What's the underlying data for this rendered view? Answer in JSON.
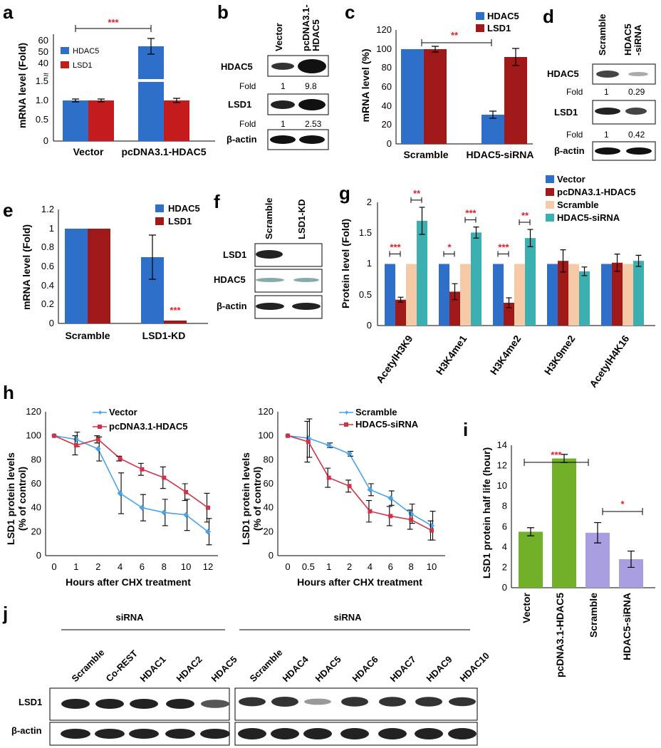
{
  "panels": {
    "a": "a",
    "b": "b",
    "c": "c",
    "d": "d",
    "e": "e",
    "f": "f",
    "g": "g",
    "h": "h",
    "i": "i",
    "j": "j"
  },
  "colors": {
    "blue": "#2e6fc9",
    "red": "#c41c1c",
    "darkred": "#a11818",
    "peach": "#f6caa6",
    "teal": "#3cb0b0",
    "green": "#72b02a",
    "lavender": "#a99ee0",
    "line_blue": "#4aa3e8",
    "line_red": "#d23248"
  },
  "chart_data": [
    {
      "id": "a",
      "type": "bar",
      "categories": [
        "Vector",
        "pcDNA3.1-HDAC5"
      ],
      "series": [
        {
          "name": "HDAC5",
          "values": [
            1.0,
            54
          ],
          "errors": [
            0.04,
            7
          ]
        },
        {
          "name": "LSD1",
          "values": [
            1.0,
            1.0
          ],
          "errors": [
            0.04,
            0.06
          ]
        }
      ],
      "ylabel": "mRNA level (Fold)",
      "yticks_low": [
        "0",
        "0.5",
        "1.0",
        "1.5"
      ],
      "yticks_high": [
        "40",
        "50",
        "60"
      ],
      "significance": "***"
    },
    {
      "id": "c",
      "type": "bar",
      "categories": [
        "Scramble",
        "HDAC5-siRNA"
      ],
      "series": [
        {
          "name": "HDAC5",
          "values": [
            100,
            31
          ],
          "errors": [
            0.5,
            4
          ]
        },
        {
          "name": "LSD1",
          "values": [
            100,
            92
          ],
          "errors": [
            3,
            9
          ]
        }
      ],
      "ylabel": "mRNA level (%)",
      "ylim": [
        0,
        120
      ],
      "yticks": [
        "0",
        "20",
        "40",
        "60",
        "80",
        "100",
        "120"
      ],
      "significance": "**"
    },
    {
      "id": "e",
      "type": "bar",
      "categories": [
        "Scramble",
        "LSD1-KD"
      ],
      "series": [
        {
          "name": "HDAC5",
          "values": [
            1,
            0.75
          ],
          "errors": [
            0,
            0.26
          ]
        },
        {
          "name": "LSD1",
          "values": [
            1,
            0.03
          ],
          "errors": [
            0,
            0
          ]
        }
      ],
      "ylabel": "mRNA level (Fold)",
      "ylim": [
        0,
        1.2
      ],
      "yticks": [
        "0",
        "0.2",
        "0.4",
        "0.6",
        "0.8",
        "1",
        "1.2"
      ],
      "significance": "***"
    },
    {
      "id": "g",
      "type": "bar",
      "categories": [
        "AcetylH3K9",
        "H3K4me1",
        "H3K4me2",
        "H3K9me2",
        "AcetylH4K16"
      ],
      "series": [
        {
          "name": "Vector",
          "values": [
            1,
            1,
            1,
            1,
            1
          ],
          "errors": [
            0,
            0,
            0,
            0,
            0
          ]
        },
        {
          "name": "pcDNA3.1-HDAC5",
          "values": [
            0.42,
            0.55,
            0.37,
            1.05,
            1.02
          ],
          "errors": [
            0.04,
            0.13,
            0.08,
            0.18,
            0.14
          ]
        },
        {
          "name": "Scramble",
          "values": [
            1,
            1,
            1,
            1,
            1
          ],
          "errors": [
            0,
            0,
            0,
            0,
            0
          ]
        },
        {
          "name": "HDAC5-siRNA",
          "values": [
            1.7,
            1.51,
            1.42,
            0.88,
            1.05
          ],
          "errors": [
            0.22,
            0.09,
            0.14,
            0.07,
            0.09
          ]
        }
      ],
      "ylabel": "Protein level (Fold)",
      "ylim": [
        0,
        2
      ],
      "yticks": [
        "0",
        "0.5",
        "1",
        "1.5",
        "2"
      ],
      "significance": [
        [
          "***",
          "**"
        ],
        [
          "*",
          "***"
        ],
        [
          "***",
          "**"
        ]
      ]
    },
    {
      "id": "h1",
      "type": "line",
      "x": [
        0,
        1,
        2,
        4,
        6,
        8,
        10,
        12
      ],
      "series": [
        {
          "name": "Vector",
          "values": [
            100,
            97,
            89,
            52,
            40,
            36,
            34,
            20
          ],
          "errors": [
            1,
            6,
            10,
            17,
            11,
            11,
            13,
            11
          ]
        },
        {
          "name": "pcDNA3.1-HDAC5",
          "values": [
            100,
            92,
            97,
            81,
            72,
            65,
            53,
            40
          ],
          "errors": [
            1,
            8,
            3,
            2,
            5,
            9,
            7,
            12
          ]
        }
      ],
      "xlabel": "Hours after CHX treatment",
      "ylabel": [
        "LSD1 protein levels",
        "(% of control)"
      ],
      "ylim": [
        0,
        120
      ],
      "xticks": [
        "0",
        "1",
        "2",
        "4",
        "6",
        "8",
        "10",
        "12"
      ],
      "yticks": [
        "0",
        "20",
        "40",
        "60",
        "80",
        "100",
        "120"
      ]
    },
    {
      "id": "h2",
      "type": "line",
      "x": [
        0,
        0.5,
        1,
        2,
        4,
        6,
        8,
        10
      ],
      "series": [
        {
          "name": "Scramble",
          "values": [
            100,
            98,
            92,
            85,
            55,
            48,
            35,
            25
          ],
          "errors": [
            1,
            16,
            2,
            2,
            5,
            6,
            8,
            12
          ]
        },
        {
          "name": "HDAC5-siRNA",
          "values": [
            100,
            95,
            65,
            58,
            37,
            33,
            30,
            21
          ],
          "errors": [
            1,
            17,
            8,
            5,
            9,
            8,
            8,
            8
          ]
        }
      ],
      "xlabel": "Hours after CHX treatment",
      "ylabel": [
        "LSD1 protein levels",
        "(% of control)"
      ],
      "ylim": [
        0,
        120
      ],
      "xticks": [
        "0",
        "0.5",
        "1",
        "2",
        "4",
        "6",
        "8",
        "10"
      ],
      "yticks": [
        "0",
        "20",
        "40",
        "60",
        "80",
        "100",
        "120"
      ]
    },
    {
      "id": "i",
      "type": "bar",
      "categories": [
        "Vector",
        "pcDNA3.1-HDAC5",
        "Scramble",
        "HDAC5-siRNA"
      ],
      "values": [
        5.5,
        12.7,
        5.4,
        2.8
      ],
      "errors": [
        0.4,
        0.4,
        1.0,
        0.8
      ],
      "ylabel": "LSD1 protein half life (hour)",
      "ylim": [
        0,
        14
      ],
      "yticks": [
        "0",
        "2",
        "4",
        "6",
        "8",
        "10",
        "12",
        "14"
      ],
      "significance": [
        "***",
        "*"
      ]
    }
  ],
  "blots": {
    "b": {
      "lanes": [
        "Vector",
        "pcDNA3.1-HDAC5"
      ],
      "rows": [
        "HDAC5",
        "LSD1",
        "β-actin"
      ],
      "fold_label": "Fold",
      "hdac5_fold": [
        "1",
        "9.8"
      ],
      "lsd1_fold": [
        "1",
        "2.53"
      ]
    },
    "d": {
      "lanes": [
        "Scramble",
        "HDAC5-siRNA"
      ],
      "rows": [
        "HDAC5",
        "LSD1",
        "β-actin"
      ],
      "fold_label": "Fold",
      "hdac5_fold": [
        "1",
        "0.29"
      ],
      "lsd1_fold": [
        "1",
        "0.42"
      ]
    },
    "f": {
      "lanes": [
        "Scramble",
        "LSD1-KD"
      ],
      "rows": [
        "LSD1",
        "HDAC5",
        "β-actin"
      ]
    },
    "j": {
      "group_label": "siRNA",
      "lanes_left": [
        "Scramble",
        "Co-REST",
        "HDAC1",
        "HDAC2",
        "HDAC5"
      ],
      "lanes_right": [
        "Scramble",
        "HDAC4",
        "HDAC5",
        "HDAC6",
        "HDAC7",
        "HDAC9",
        "HDAC10"
      ],
      "rows": [
        "LSD1",
        "β-actin"
      ]
    }
  }
}
